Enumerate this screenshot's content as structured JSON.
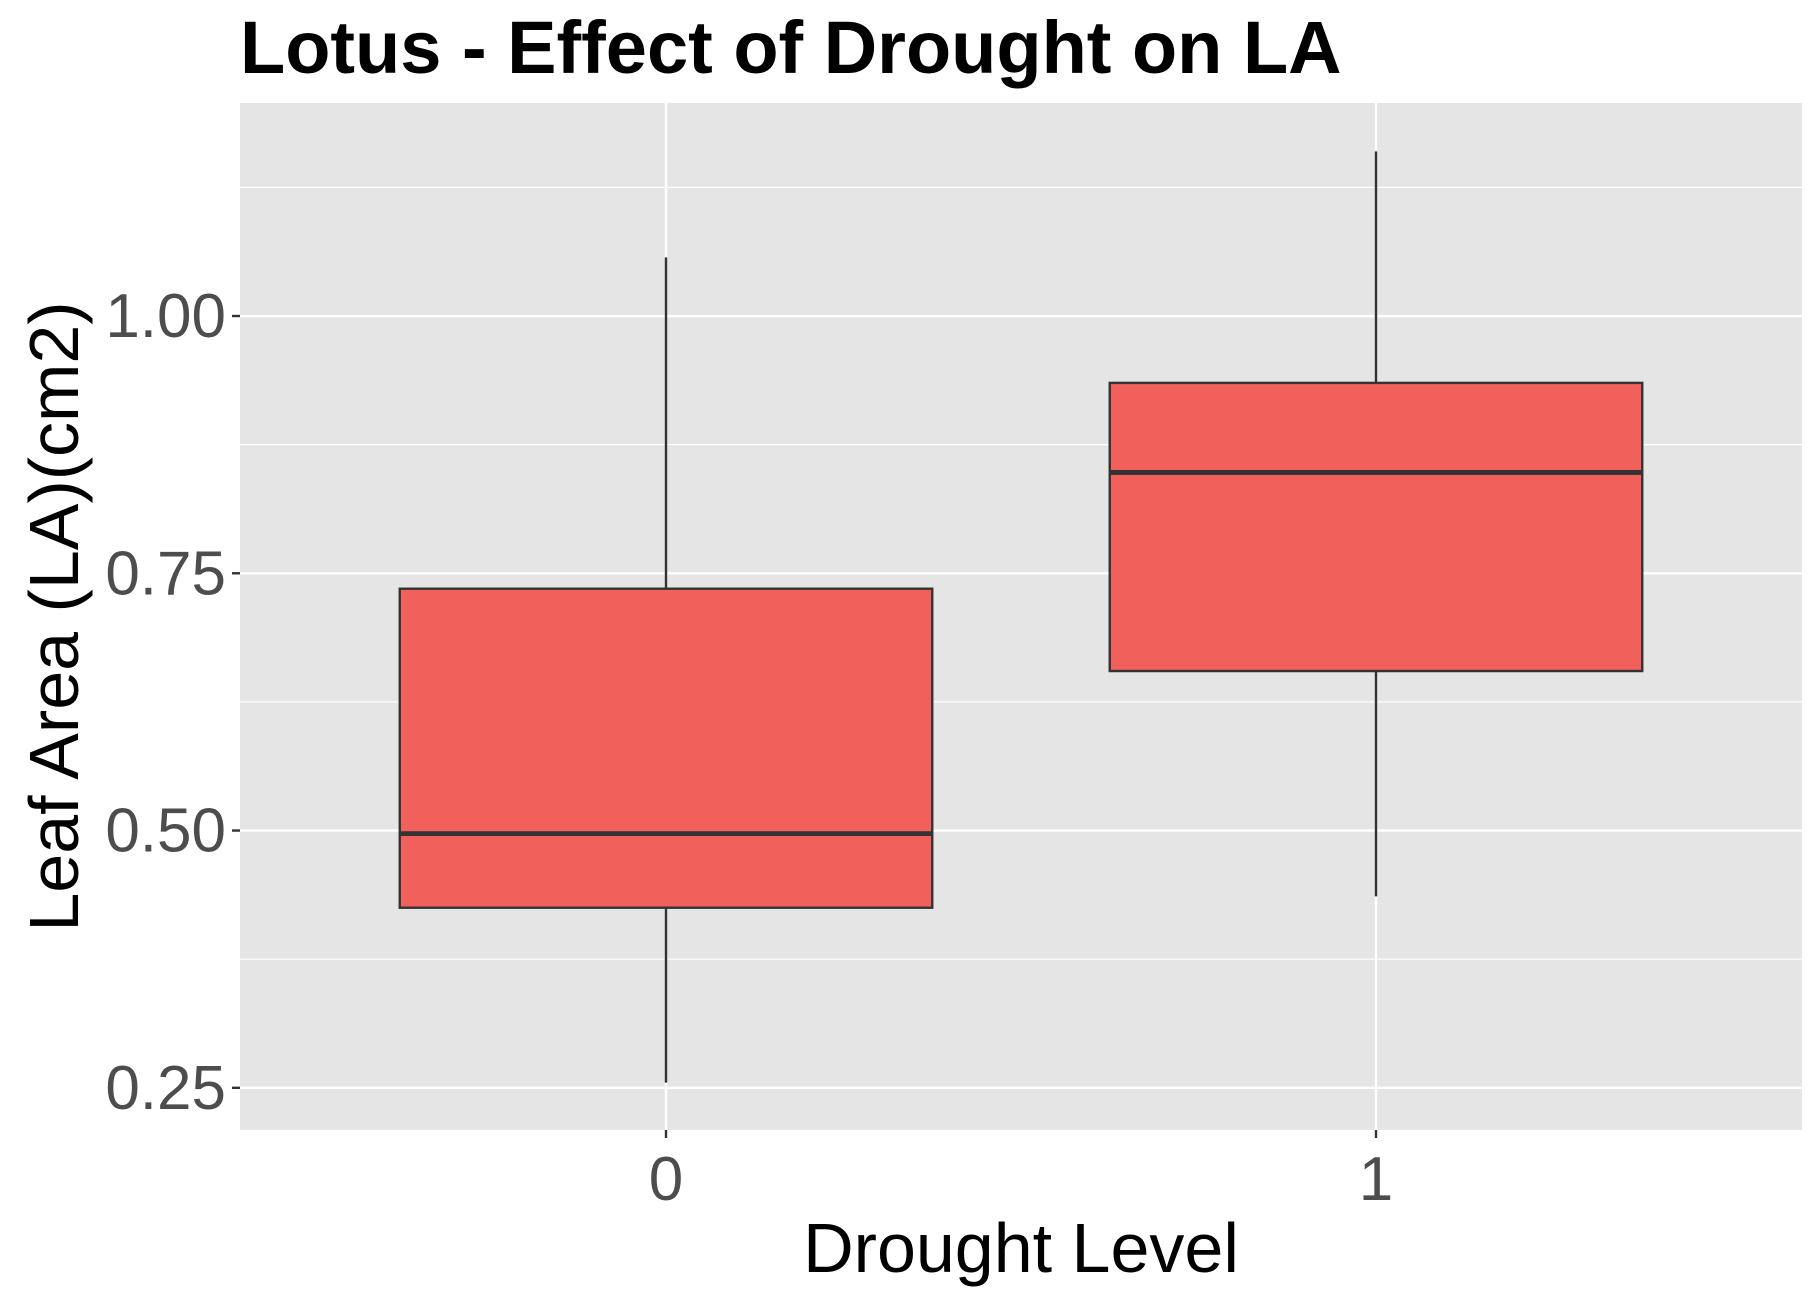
{
  "chart_data": {
    "type": "boxplot",
    "title": "Lotus - Effect of Drought on LA",
    "xlabel": "Drought Level",
    "ylabel": "Leaf Area (LA)(cm2)",
    "categories": [
      "0",
      "1"
    ],
    "boxes": [
      {
        "category": "0",
        "whisker_low": 0.255,
        "q1": 0.425,
        "median": 0.497,
        "q3": 0.735,
        "whisker_high": 1.057
      },
      {
        "category": "1",
        "whisker_low": 0.436,
        "q1": 0.655,
        "median": 0.848,
        "q3": 0.935,
        "whisker_high": 1.16
      }
    ],
    "y_ticks": [
      0.25,
      0.5,
      0.75,
      1.0
    ],
    "y_tick_labels": [
      "0.25",
      "0.50",
      "0.75",
      "1.00"
    ],
    "ylim": [
      0.209,
      1.207
    ],
    "fill_color": "#f2605c",
    "panel_color": "#e5e5e5",
    "grid": true,
    "legend": "none"
  }
}
